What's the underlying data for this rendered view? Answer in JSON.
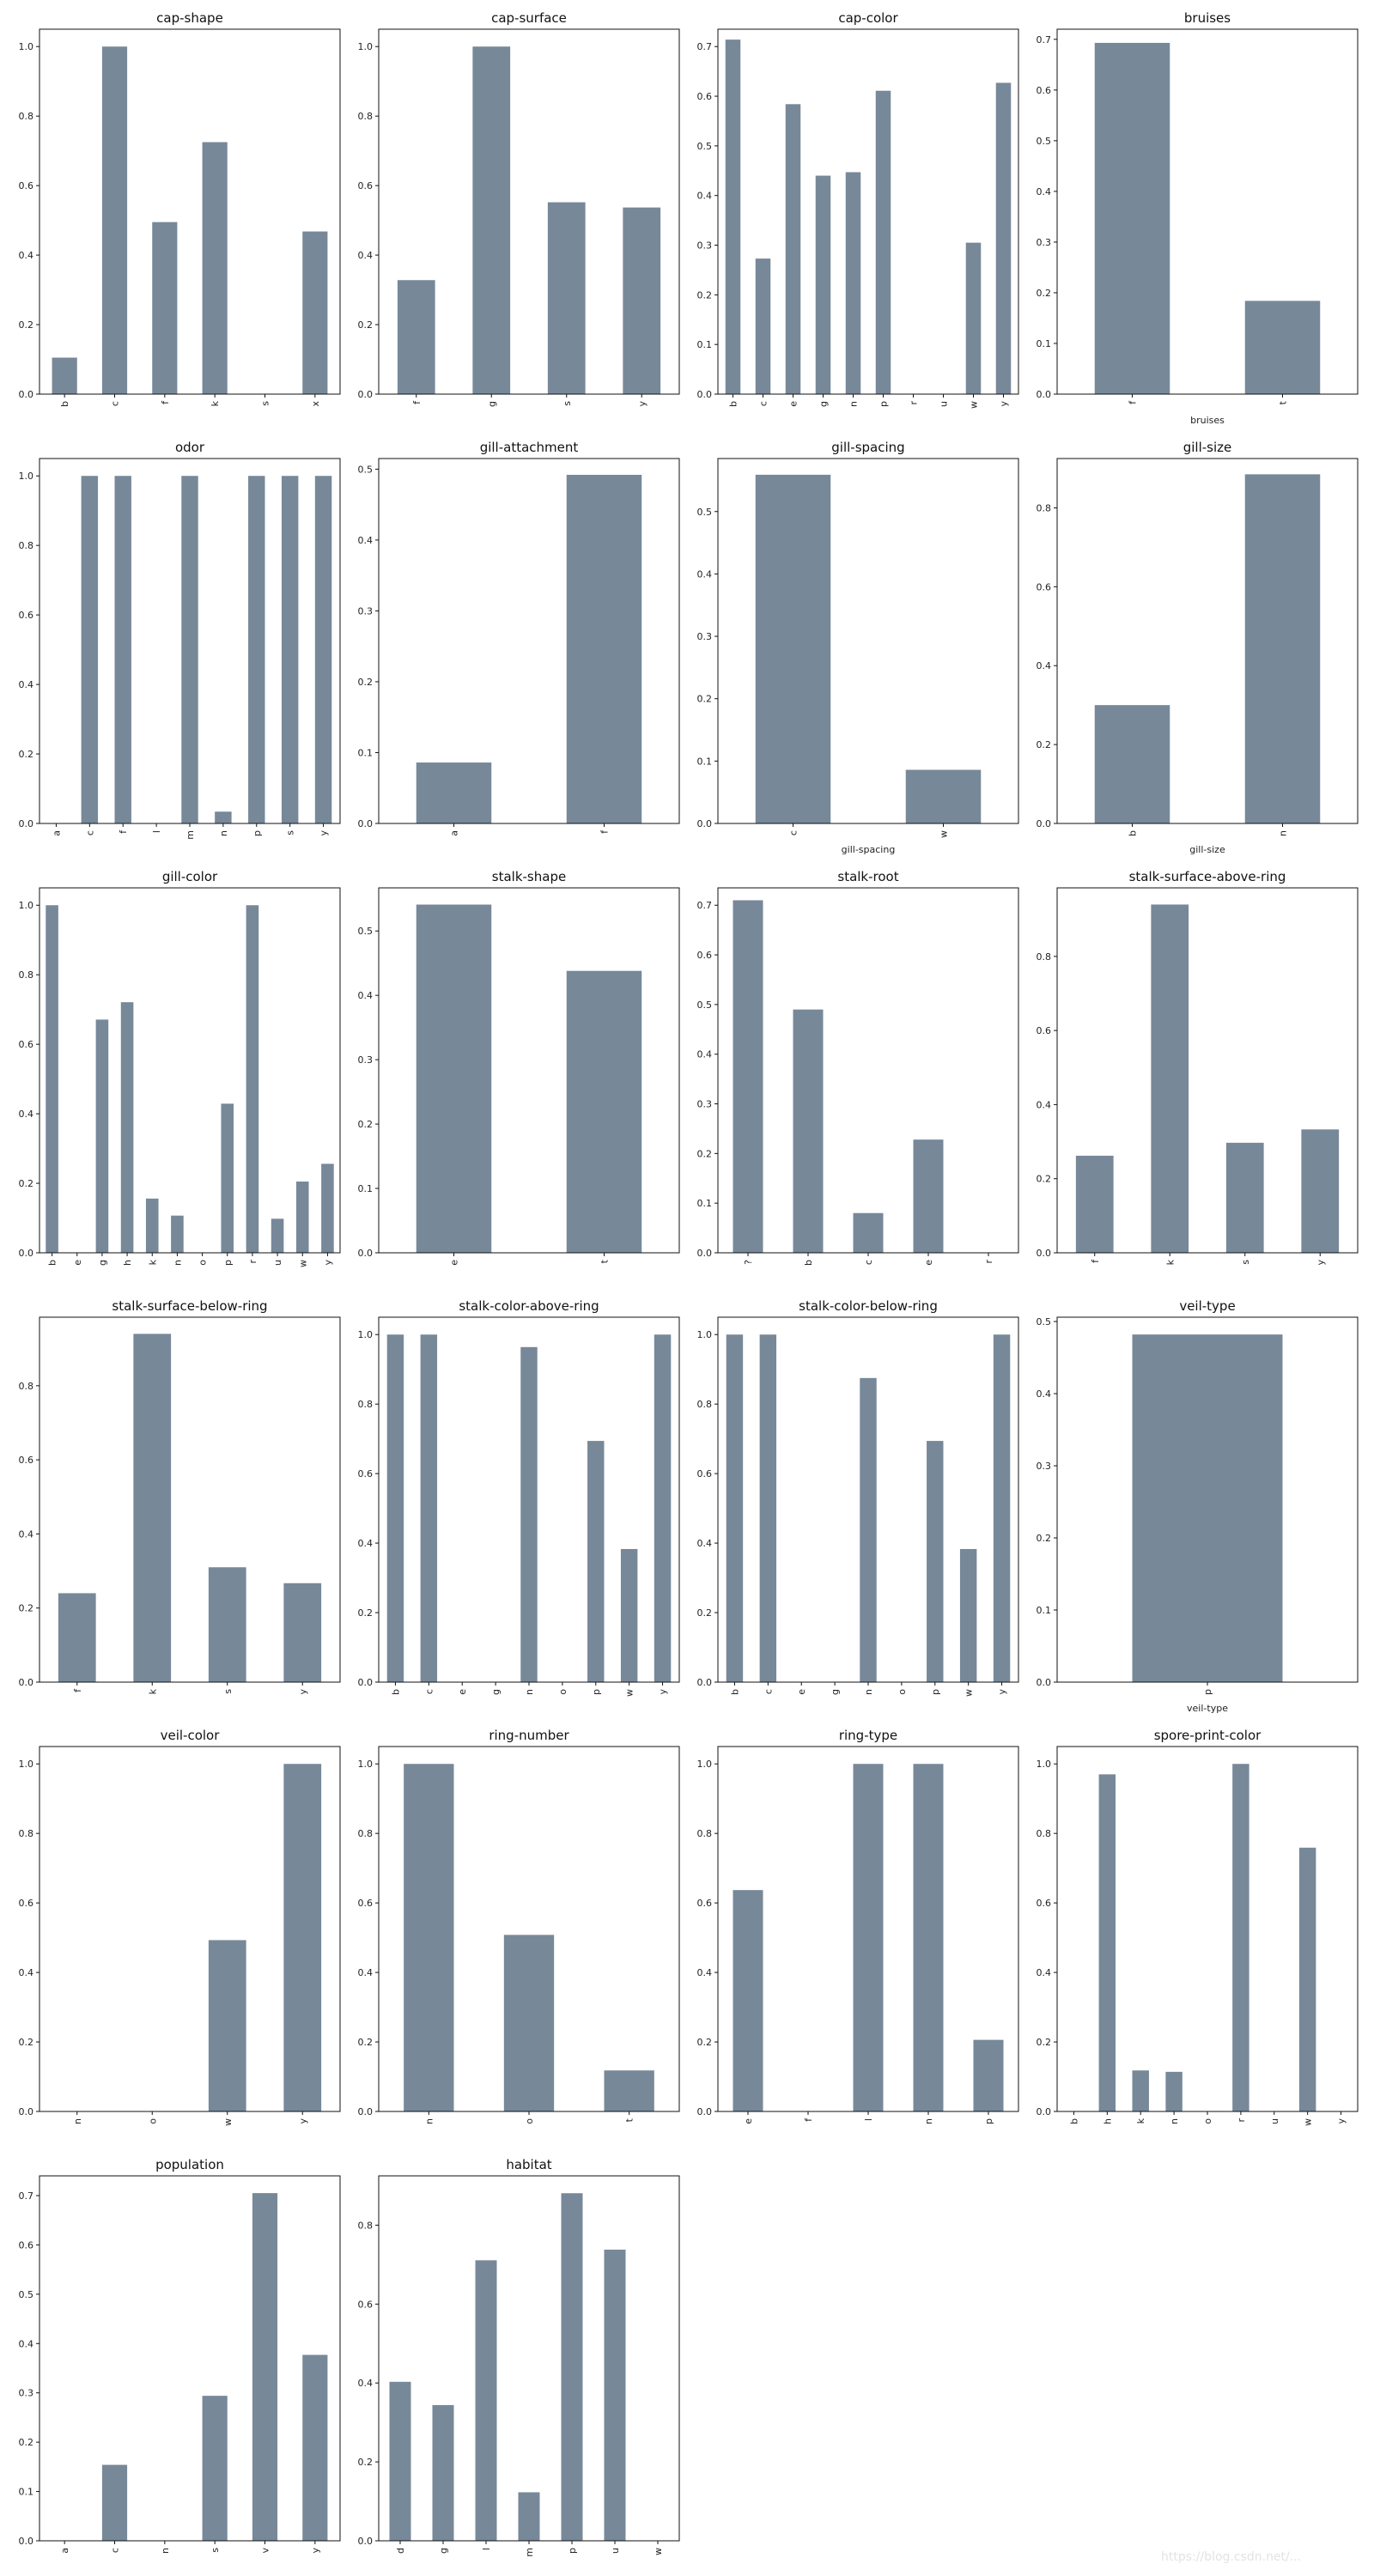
{
  "bar_color": "#778899",
  "watermark": "https://blog.csdn.net/...",
  "chart_data": [
    {
      "type": "bar",
      "title": "cap-shape",
      "xlabel": "",
      "categories": [
        "b",
        "c",
        "f",
        "k",
        "s",
        "x"
      ],
      "values": [
        0.105,
        1.0,
        0.495,
        0.725,
        0,
        0.468
      ],
      "ylim": [
        0,
        1.05
      ],
      "yticks": [
        0.0,
        0.2,
        0.4,
        0.6,
        0.8,
        1.0
      ],
      "ytick_labels": [
        "0.0",
        "0.2",
        "0.4",
        "0.6",
        "0.8",
        "1.0"
      ]
    },
    {
      "type": "bar",
      "title": "cap-surface",
      "xlabel": "",
      "categories": [
        "f",
        "g",
        "s",
        "y"
      ],
      "values": [
        0.328,
        1.0,
        0.552,
        0.537
      ],
      "ylim": [
        0,
        1.05
      ],
      "yticks": [
        0.0,
        0.2,
        0.4,
        0.6,
        0.8,
        1.0
      ],
      "ytick_labels": [
        "0.0",
        "0.2",
        "0.4",
        "0.6",
        "0.8",
        "1.0"
      ]
    },
    {
      "type": "bar",
      "title": "cap-color",
      "xlabel": "",
      "categories": [
        "b",
        "c",
        "e",
        "g",
        "n",
        "p",
        "r",
        "u",
        "w",
        "y"
      ],
      "values": [
        0.714,
        0.273,
        0.584,
        0.44,
        0.447,
        0.611,
        0,
        0,
        0.305,
        0.627
      ],
      "ylim": [
        0,
        0.735
      ],
      "yticks": [
        0.0,
        0.1,
        0.2,
        0.3,
        0.4,
        0.5,
        0.6,
        0.7
      ],
      "ytick_labels": [
        "0.0",
        "0.1",
        "0.2",
        "0.3",
        "0.4",
        "0.5",
        "0.6",
        "0.7"
      ]
    },
    {
      "type": "bar",
      "title": "bruises",
      "xlabel": "bruises",
      "categories": [
        "f",
        "t"
      ],
      "values": [
        0.693,
        0.184
      ],
      "ylim": [
        0,
        0.72
      ],
      "yticks": [
        0.0,
        0.1,
        0.2,
        0.3,
        0.4,
        0.5,
        0.6,
        0.7
      ],
      "ytick_labels": [
        "0.0",
        "0.1",
        "0.2",
        "0.3",
        "0.4",
        "0.5",
        "0.6",
        "0.7"
      ]
    },
    {
      "type": "bar",
      "title": "odor",
      "xlabel": "",
      "categories": [
        "a",
        "c",
        "f",
        "l",
        "m",
        "n",
        "p",
        "s",
        "y"
      ],
      "values": [
        0,
        1.0,
        1.0,
        0,
        1.0,
        0.034,
        1.0,
        1.0,
        1.0
      ],
      "ylim": [
        0,
        1.05
      ],
      "yticks": [
        0.0,
        0.2,
        0.4,
        0.6,
        0.8,
        1.0
      ],
      "ytick_labels": [
        "0.0",
        "0.2",
        "0.4",
        "0.6",
        "0.8",
        "1.0"
      ]
    },
    {
      "type": "bar",
      "title": "gill-attachment",
      "xlabel": "",
      "categories": [
        "a",
        "f"
      ],
      "values": [
        0.086,
        0.492
      ],
      "ylim": [
        0,
        0.515
      ],
      "yticks": [
        0.0,
        0.1,
        0.2,
        0.3,
        0.4,
        0.5
      ],
      "ytick_labels": [
        "0.0",
        "0.1",
        "0.2",
        "0.3",
        "0.4",
        "0.5"
      ]
    },
    {
      "type": "bar",
      "title": "gill-spacing",
      "xlabel": "gill-spacing",
      "categories": [
        "c",
        "w"
      ],
      "values": [
        0.559,
        0.086
      ],
      "ylim": [
        0,
        0.585
      ],
      "yticks": [
        0.0,
        0.1,
        0.2,
        0.3,
        0.4,
        0.5
      ],
      "ytick_labels": [
        "0.0",
        "0.1",
        "0.2",
        "0.3",
        "0.4",
        "0.5"
      ]
    },
    {
      "type": "bar",
      "title": "gill-size",
      "xlabel": "gill-size",
      "categories": [
        "b",
        "n"
      ],
      "values": [
        0.3,
        0.885
      ],
      "ylim": [
        0,
        0.925
      ],
      "yticks": [
        0.0,
        0.2,
        0.4,
        0.6,
        0.8
      ],
      "ytick_labels": [
        "0.0",
        "0.2",
        "0.4",
        "0.6",
        "0.8"
      ]
    },
    {
      "type": "bar",
      "title": "gill-color",
      "xlabel": "",
      "categories": [
        "b",
        "e",
        "g",
        "h",
        "k",
        "n",
        "o",
        "p",
        "r",
        "u",
        "w",
        "y"
      ],
      "values": [
        1.0,
        0,
        0.671,
        0.721,
        0.156,
        0.107,
        0,
        0.429,
        1.0,
        0.098,
        0.205,
        0.256
      ],
      "ylim": [
        0,
        1.05
      ],
      "yticks": [
        0.0,
        0.2,
        0.4,
        0.6,
        0.8,
        1.0
      ],
      "ytick_labels": [
        "0.0",
        "0.2",
        "0.4",
        "0.6",
        "0.8",
        "1.0"
      ]
    },
    {
      "type": "bar",
      "title": "stalk-shape",
      "xlabel": "",
      "categories": [
        "e",
        "t"
      ],
      "values": [
        0.541,
        0.438
      ],
      "ylim": [
        0,
        0.567
      ],
      "yticks": [
        0.0,
        0.1,
        0.2,
        0.3,
        0.4,
        0.5
      ],
      "ytick_labels": [
        "0.0",
        "0.1",
        "0.2",
        "0.3",
        "0.4",
        "0.5"
      ]
    },
    {
      "type": "bar",
      "title": "stalk-root",
      "xlabel": "",
      "categories": [
        "?",
        "b",
        "c",
        "e",
        "r"
      ],
      "values": [
        0.71,
        0.49,
        0.08,
        0.228,
        0
      ],
      "ylim": [
        0,
        0.735
      ],
      "yticks": [
        0.0,
        0.1,
        0.2,
        0.3,
        0.4,
        0.5,
        0.6,
        0.7
      ],
      "ytick_labels": [
        "0.0",
        "0.1",
        "0.2",
        "0.3",
        "0.4",
        "0.5",
        "0.6",
        "0.7"
      ]
    },
    {
      "type": "bar",
      "title": "stalk-surface-above-ring",
      "xlabel": "",
      "categories": [
        "f",
        "k",
        "s",
        "y"
      ],
      "values": [
        0.262,
        0.94,
        0.297,
        0.333
      ],
      "ylim": [
        0,
        0.985
      ],
      "yticks": [
        0.0,
        0.2,
        0.4,
        0.6,
        0.8
      ],
      "ytick_labels": [
        "0.0",
        "0.2",
        "0.4",
        "0.6",
        "0.8"
      ]
    },
    {
      "type": "bar",
      "title": "stalk-surface-below-ring",
      "xlabel": "",
      "categories": [
        "f",
        "k",
        "s",
        "y"
      ],
      "values": [
        0.24,
        0.94,
        0.31,
        0.267
      ],
      "ylim": [
        0,
        0.985
      ],
      "yticks": [
        0.0,
        0.2,
        0.4,
        0.6,
        0.8
      ],
      "ytick_labels": [
        "0.0",
        "0.2",
        "0.4",
        "0.6",
        "0.8"
      ]
    },
    {
      "type": "bar",
      "title": "stalk-color-above-ring",
      "xlabel": "",
      "categories": [
        "b",
        "c",
        "e",
        "g",
        "n",
        "o",
        "p",
        "w",
        "y"
      ],
      "values": [
        1.0,
        1.0,
        0,
        0,
        0.964,
        0,
        0.694,
        0.383,
        1.0
      ],
      "ylim": [
        0,
        1.05
      ],
      "yticks": [
        0.0,
        0.2,
        0.4,
        0.6,
        0.8,
        1.0
      ],
      "ytick_labels": [
        "0.0",
        "0.2",
        "0.4",
        "0.6",
        "0.8",
        "1.0"
      ]
    },
    {
      "type": "bar",
      "title": "stalk-color-below-ring",
      "xlabel": "",
      "categories": [
        "b",
        "c",
        "e",
        "g",
        "n",
        "o",
        "p",
        "w",
        "y"
      ],
      "values": [
        1.0,
        1.0,
        0,
        0,
        0.875,
        0,
        0.694,
        0.383,
        1.0
      ],
      "ylim": [
        0,
        1.05
      ],
      "yticks": [
        0.0,
        0.2,
        0.4,
        0.6,
        0.8,
        1.0
      ],
      "ytick_labels": [
        "0.0",
        "0.2",
        "0.4",
        "0.6",
        "0.8",
        "1.0"
      ]
    },
    {
      "type": "bar",
      "title": "veil-type",
      "xlabel": "veil-type",
      "categories": [
        "p"
      ],
      "values": [
        0.482
      ],
      "ylim": [
        0,
        0.506
      ],
      "yticks": [
        0.0,
        0.1,
        0.2,
        0.3,
        0.4,
        0.5
      ],
      "ytick_labels": [
        "0.0",
        "0.1",
        "0.2",
        "0.3",
        "0.4",
        "0.5"
      ]
    },
    {
      "type": "bar",
      "title": "veil-color",
      "xlabel": "",
      "categories": [
        "n",
        "o",
        "w",
        "y"
      ],
      "values": [
        0,
        0,
        0.493,
        1.0
      ],
      "ylim": [
        0,
        1.05
      ],
      "yticks": [
        0.0,
        0.2,
        0.4,
        0.6,
        0.8,
        1.0
      ],
      "ytick_labels": [
        "0.0",
        "0.2",
        "0.4",
        "0.6",
        "0.8",
        "1.0"
      ]
    },
    {
      "type": "bar",
      "title": "ring-number",
      "xlabel": "",
      "categories": [
        "n",
        "o",
        "t"
      ],
      "values": [
        1.0,
        0.508,
        0.118
      ],
      "ylim": [
        0,
        1.05
      ],
      "yticks": [
        0.0,
        0.2,
        0.4,
        0.6,
        0.8,
        1.0
      ],
      "ytick_labels": [
        "0.0",
        "0.2",
        "0.4",
        "0.6",
        "0.8",
        "1.0"
      ]
    },
    {
      "type": "bar",
      "title": "ring-type",
      "xlabel": "",
      "categories": [
        "e",
        "f",
        "l",
        "n",
        "p"
      ],
      "values": [
        0.637,
        0,
        1.0,
        1.0,
        0.206
      ],
      "ylim": [
        0,
        1.05
      ],
      "yticks": [
        0.0,
        0.2,
        0.4,
        0.6,
        0.8,
        1.0
      ],
      "ytick_labels": [
        "0.0",
        "0.2",
        "0.4",
        "0.6",
        "0.8",
        "1.0"
      ]
    },
    {
      "type": "bar",
      "title": "spore-print-color",
      "xlabel": "",
      "categories": [
        "b",
        "h",
        "k",
        "n",
        "o",
        "r",
        "u",
        "w",
        "y"
      ],
      "values": [
        0,
        0.97,
        0.118,
        0.114,
        0,
        1.0,
        0,
        0.759,
        0
      ],
      "ylim": [
        0,
        1.05
      ],
      "yticks": [
        0.0,
        0.2,
        0.4,
        0.6,
        0.8,
        1.0
      ],
      "ytick_labels": [
        "0.0",
        "0.2",
        "0.4",
        "0.6",
        "0.8",
        "1.0"
      ]
    },
    {
      "type": "bar",
      "title": "population",
      "xlabel": "",
      "categories": [
        "a",
        "c",
        "n",
        "s",
        "v",
        "y"
      ],
      "values": [
        0,
        0.154,
        0,
        0.294,
        0.705,
        0.377
      ],
      "ylim": [
        0,
        0.74
      ],
      "yticks": [
        0.0,
        0.1,
        0.2,
        0.3,
        0.4,
        0.5,
        0.6,
        0.7
      ],
      "ytick_labels": [
        "0.0",
        "0.1",
        "0.2",
        "0.3",
        "0.4",
        "0.5",
        "0.6",
        "0.7"
      ]
    },
    {
      "type": "bar",
      "title": "habitat",
      "xlabel": "",
      "categories": [
        "d",
        "g",
        "l",
        "m",
        "p",
        "u",
        "w"
      ],
      "values": [
        0.403,
        0.344,
        0.711,
        0.123,
        0.881,
        0.738,
        0
      ],
      "ylim": [
        0,
        0.925
      ],
      "yticks": [
        0.0,
        0.2,
        0.4,
        0.6,
        0.8
      ],
      "ytick_labels": [
        "0.0",
        "0.2",
        "0.4",
        "0.6",
        "0.8"
      ]
    }
  ]
}
